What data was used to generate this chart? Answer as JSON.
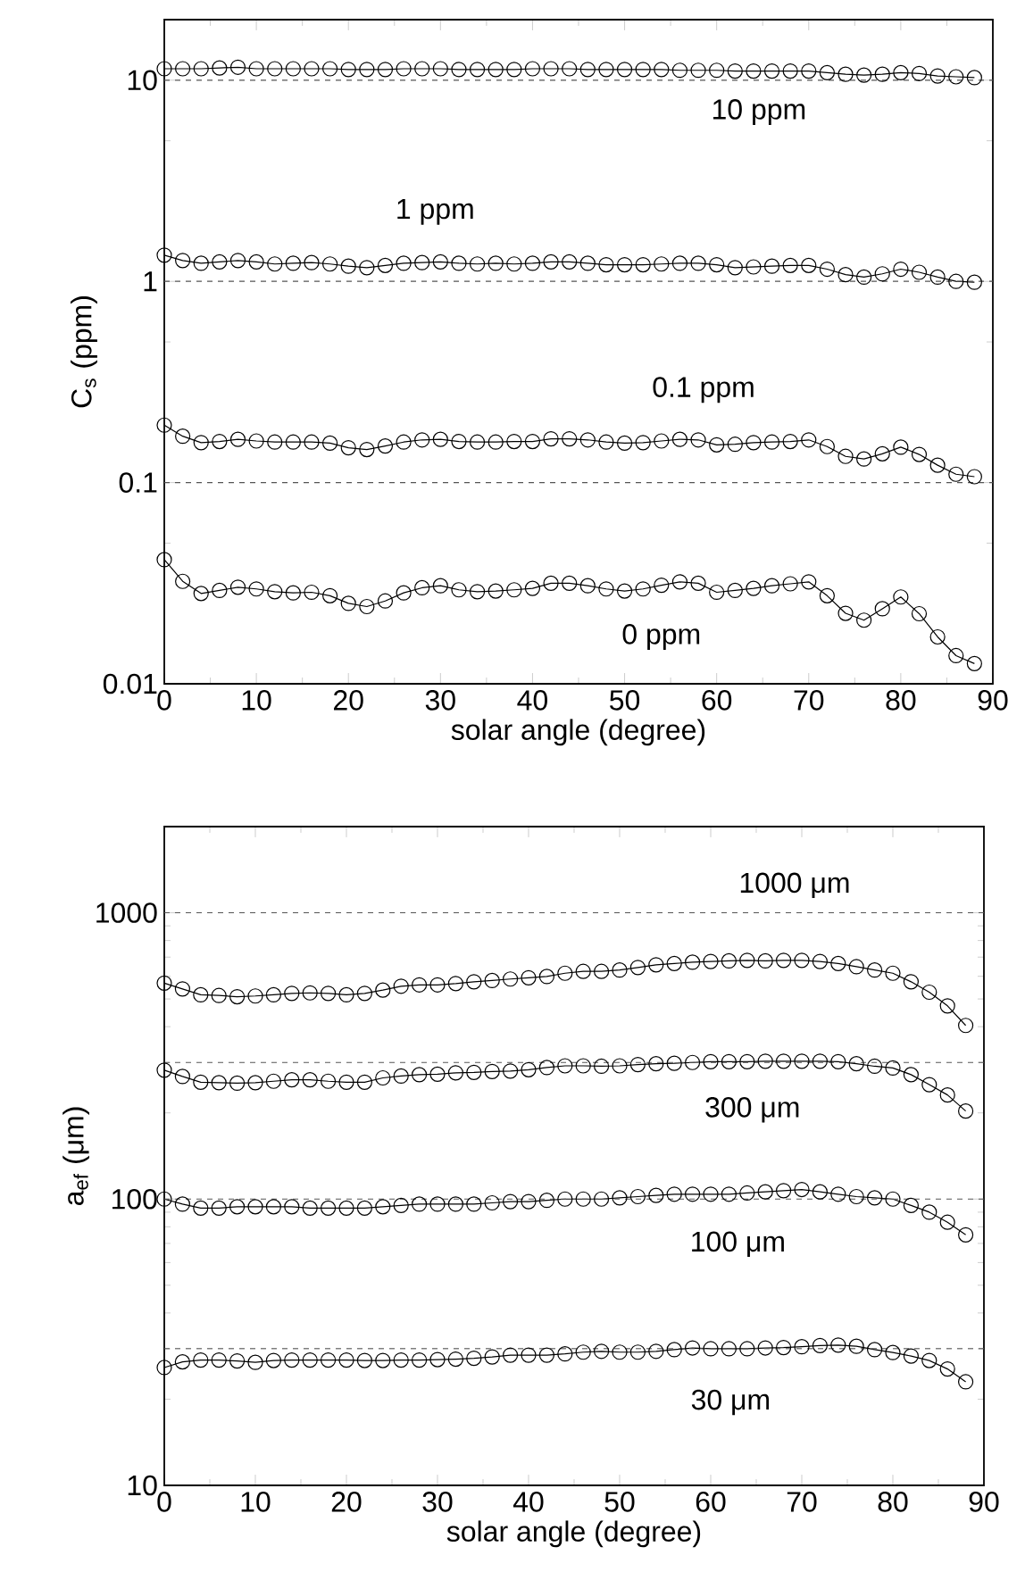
{
  "chart_data": [
    {
      "type": "line",
      "xlabel": "solar angle (degree)",
      "ylabel": "C$_{s}$ (ppm)",
      "log": "y",
      "marker": "circle",
      "line_style": "solid",
      "xlim": [
        0,
        90
      ],
      "xticks": [
        0,
        {
          "value": 5,
          "label": null
        },
        10,
        {
          "value": 15,
          "label": null
        },
        20,
        {
          "value": 25,
          "label": null
        },
        30,
        {
          "value": 35,
          "label": null
        },
        40,
        {
          "value": 45,
          "label": null
        },
        50,
        {
          "value": 55,
          "label": null
        },
        60,
        {
          "value": 65,
          "label": null
        },
        70,
        {
          "value": 75,
          "label": null
        },
        80,
        {
          "value": 85,
          "label": null
        },
        90
      ],
      "ylim": [
        0.01,
        20
      ],
      "yticks": [
        0.01,
        {
          "value": 0.05,
          "label": null
        },
        0.1,
        {
          "value": 0.5,
          "label": null
        },
        1,
        {
          "value": 5,
          "label": null
        },
        10
      ],
      "x": [
        0,
        2,
        4,
        6,
        8,
        10,
        12,
        14,
        16,
        18,
        20,
        22,
        24,
        26,
        28,
        30,
        32,
        34,
        36,
        38,
        40,
        42,
        44,
        46,
        48,
        50,
        52,
        54,
        56,
        58,
        60,
        62,
        64,
        66,
        68,
        70,
        72,
        74,
        76,
        78,
        80,
        82,
        84,
        86,
        88
      ],
      "series": [
        {
          "name": "10 ppm",
          "color": "#000000",
          "values": [
            11.4,
            11.4,
            11.4,
            11.5,
            11.6,
            11.4,
            11.4,
            11.4,
            11.4,
            11.4,
            11.3,
            11.3,
            11.3,
            11.4,
            11.4,
            11.4,
            11.3,
            11.3,
            11.3,
            11.3,
            11.4,
            11.4,
            11.4,
            11.3,
            11.3,
            11.3,
            11.3,
            11.3,
            11.2,
            11.2,
            11.2,
            11.1,
            11.1,
            11.1,
            11.1,
            11.1,
            10.9,
            10.7,
            10.6,
            10.7,
            10.9,
            10.8,
            10.5,
            10.4,
            10.3
          ]
        },
        {
          "name": "1 ppm",
          "color": "#000000",
          "values": [
            1.35,
            1.27,
            1.23,
            1.25,
            1.27,
            1.25,
            1.22,
            1.23,
            1.24,
            1.22,
            1.19,
            1.17,
            1.2,
            1.23,
            1.24,
            1.25,
            1.23,
            1.22,
            1.23,
            1.22,
            1.23,
            1.25,
            1.25,
            1.23,
            1.21,
            1.21,
            1.21,
            1.22,
            1.23,
            1.23,
            1.21,
            1.17,
            1.18,
            1.19,
            1.2,
            1.2,
            1.15,
            1.08,
            1.05,
            1.09,
            1.15,
            1.11,
            1.05,
            1.0,
            0.99
          ]
        },
        {
          "name": "0.1 ppm",
          "color": "#000000",
          "values": [
            0.193,
            0.17,
            0.158,
            0.16,
            0.164,
            0.161,
            0.159,
            0.159,
            0.159,
            0.157,
            0.149,
            0.146,
            0.152,
            0.159,
            0.163,
            0.164,
            0.16,
            0.159,
            0.159,
            0.16,
            0.16,
            0.165,
            0.165,
            0.163,
            0.159,
            0.157,
            0.158,
            0.161,
            0.164,
            0.163,
            0.154,
            0.155,
            0.158,
            0.159,
            0.16,
            0.163,
            0.151,
            0.135,
            0.131,
            0.139,
            0.15,
            0.138,
            0.122,
            0.11,
            0.107
          ]
        },
        {
          "name": "0 ppm",
          "color": "#000000",
          "values": [
            0.0414,
            0.0323,
            0.0281,
            0.0291,
            0.0302,
            0.0296,
            0.0287,
            0.0283,
            0.0285,
            0.0274,
            0.0251,
            0.0242,
            0.0258,
            0.0283,
            0.03,
            0.0307,
            0.0293,
            0.0287,
            0.0289,
            0.0293,
            0.0298,
            0.0316,
            0.0316,
            0.0307,
            0.0296,
            0.0289,
            0.0296,
            0.0309,
            0.0321,
            0.0316,
            0.0285,
            0.0291,
            0.0298,
            0.0307,
            0.0314,
            0.0321,
            0.0274,
            0.0224,
            0.0207,
            0.0236,
            0.027,
            0.0223,
            0.0171,
            0.0138,
            0.0126
          ]
        }
      ],
      "ref_lines": [
        {
          "axis": "y",
          "value": 10,
          "color": "#555555",
          "line_style": "dashed"
        },
        {
          "axis": "y",
          "value": 1,
          "color": "#555555",
          "line_style": "dashed"
        },
        {
          "axis": "y",
          "value": 0.1,
          "color": "#555555",
          "line_style": "dashed"
        }
      ]
    },
    {
      "type": "line",
      "xlabel": "solar angle (degree)",
      "ylabel": "a$_{ef}$ (μm)",
      "log": "y",
      "marker": "circle",
      "line_style": "solid",
      "xlim": [
        0,
        90
      ],
      "xticks": [
        0,
        {
          "value": 5,
          "label": null
        },
        10,
        {
          "value": 15,
          "label": null
        },
        20,
        {
          "value": 25,
          "label": null
        },
        30,
        {
          "value": 35,
          "label": null
        },
        40,
        {
          "value": 45,
          "label": null
        },
        50,
        {
          "value": 55,
          "label": null
        },
        60,
        {
          "value": 65,
          "label": null
        },
        70,
        {
          "value": 75,
          "label": null
        },
        80,
        {
          "value": 85,
          "label": null
        },
        90
      ],
      "ylim": [
        10,
        2000
      ],
      "yticks": [
        10,
        {
          "value": 20,
          "label": null
        },
        {
          "value": 30,
          "label": null
        },
        {
          "value": 40,
          "label": null
        },
        {
          "value": 50,
          "label": null
        },
        {
          "value": 60,
          "label": null
        },
        {
          "value": 70,
          "label": null
        },
        {
          "value": 80,
          "label": null
        },
        {
          "value": 90,
          "label": null
        },
        100,
        {
          "value": 200,
          "label": null
        },
        {
          "value": 300,
          "label": null
        },
        {
          "value": 400,
          "label": null
        },
        {
          "value": 500,
          "label": null
        },
        {
          "value": 600,
          "label": null
        },
        {
          "value": 700,
          "label": null
        },
        {
          "value": 800,
          "label": null
        },
        {
          "value": 900,
          "label": null
        },
        1000
      ],
      "x": [
        0,
        2,
        4,
        6,
        8,
        10,
        12,
        14,
        16,
        18,
        20,
        22,
        24,
        26,
        28,
        30,
        32,
        34,
        36,
        38,
        40,
        42,
        44,
        46,
        48,
        50,
        52,
        54,
        56,
        58,
        60,
        62,
        64,
        66,
        68,
        70,
        72,
        74,
        76,
        78,
        80,
        82,
        84,
        86,
        88
      ],
      "series": [
        {
          "name": "1000 μm",
          "color": "#000000",
          "values": [
            568,
            542,
            517,
            514,
            509,
            512,
            517,
            523,
            525,
            523,
            517,
            523,
            537,
            554,
            560,
            560,
            566,
            574,
            580,
            587,
            593,
            599,
            615,
            624,
            624,
            631,
            644,
            658,
            665,
            672,
            676,
            679,
            682,
            679,
            682,
            682,
            676,
            665,
            648,
            631,
            615,
            574,
            528,
            473,
            404
          ]
        },
        {
          "name": "300 μm",
          "color": "#000000",
          "values": [
            282,
            268,
            256,
            255,
            254,
            255,
            258,
            261,
            261,
            258,
            256,
            256,
            265,
            269,
            272,
            273,
            276,
            277,
            279,
            280,
            283,
            288,
            292,
            292,
            291,
            292,
            295,
            297,
            298,
            300,
            302,
            302,
            302,
            303,
            303,
            303,
            303,
            302,
            297,
            291,
            287,
            272,
            251,
            231,
            203
          ]
        },
        {
          "name": "100 μm",
          "color": "#000000",
          "values": [
            100,
            96,
            93,
            93,
            94,
            94,
            94,
            94,
            93,
            93,
            93,
            93,
            94,
            95,
            96,
            96,
            96,
            96,
            97,
            98,
            98,
            99,
            100,
            100,
            100,
            101,
            102,
            103,
            104,
            104,
            104,
            104,
            105,
            106,
            107,
            108,
            106,
            104,
            102,
            101,
            100,
            95,
            90,
            83,
            75
          ]
        },
        {
          "name": "30 μm",
          "color": "#000000",
          "values": [
            25.8,
            27.0,
            27.4,
            27.4,
            27.2,
            26.9,
            27.3,
            27.4,
            27.4,
            27.4,
            27.4,
            27.3,
            27.3,
            27.4,
            27.4,
            27.5,
            27.6,
            27.8,
            28.1,
            28.5,
            28.5,
            28.5,
            28.8,
            29.2,
            29.4,
            29.2,
            29.2,
            29.4,
            29.8,
            30.2,
            30.0,
            30.0,
            30.0,
            30.2,
            30.3,
            30.5,
            30.8,
            30.9,
            30.6,
            29.8,
            29.1,
            28.3,
            27.3,
            25.5,
            23.0
          ]
        }
      ],
      "ref_lines": [
        {
          "axis": "y",
          "value": 1000,
          "color": "#555555",
          "line_style": "dashed"
        },
        {
          "axis": "y",
          "value": 300,
          "color": "#555555",
          "line_style": "dashed"
        },
        {
          "axis": "y",
          "value": 100,
          "color": "#555555",
          "line_style": "dashed"
        },
        {
          "axis": "y",
          "value": 30,
          "color": "#555555",
          "line_style": "dashed"
        }
      ]
    }
  ]
}
